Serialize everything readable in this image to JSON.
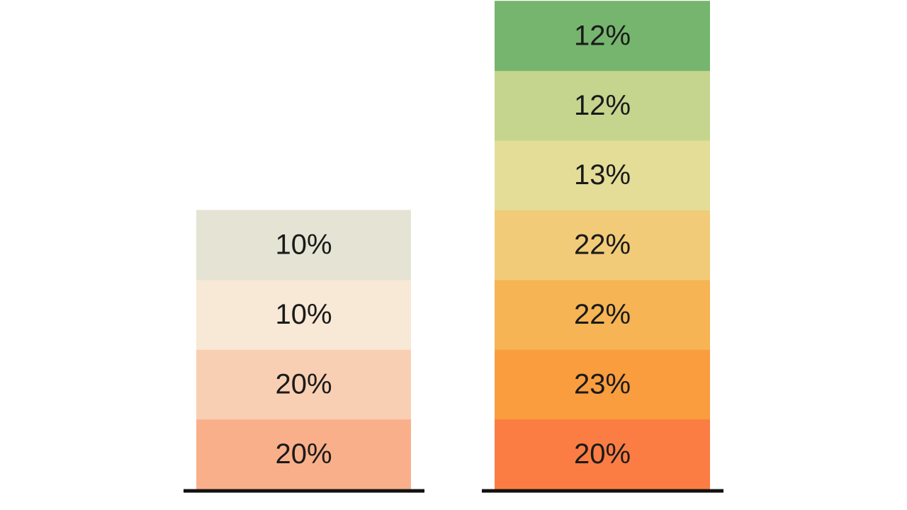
{
  "chart_data": {
    "type": "bar",
    "stacked": true,
    "title": "",
    "xlabel": "",
    "ylabel": "",
    "grid": false,
    "bars": [
      {
        "segments": [
          {
            "value": 20,
            "label": "20%",
            "color": "#f9b08a"
          },
          {
            "value": 20,
            "label": "20%",
            "color": "#f9cfb3"
          },
          {
            "value": 10,
            "label": "10%",
            "color": "#f8e8d6"
          },
          {
            "value": 10,
            "label": "10%",
            "color": "#e5e4d4"
          }
        ]
      },
      {
        "segments": [
          {
            "value": 20,
            "label": "20%",
            "color": "#fb7d43"
          },
          {
            "value": 23,
            "label": "23%",
            "color": "#f99d3f"
          },
          {
            "value": 22,
            "label": "22%",
            "color": "#f6b454"
          },
          {
            "value": 22,
            "label": "22%",
            "color": "#f1cb78"
          },
          {
            "value": 13,
            "label": "13%",
            "color": "#e4dd98"
          },
          {
            "value": 12,
            "label": "12%",
            "color": "#c5d58e"
          },
          {
            "value": 12,
            "label": "12%",
            "color": "#76b56e"
          }
        ]
      }
    ],
    "baseline_color": "#111111"
  }
}
